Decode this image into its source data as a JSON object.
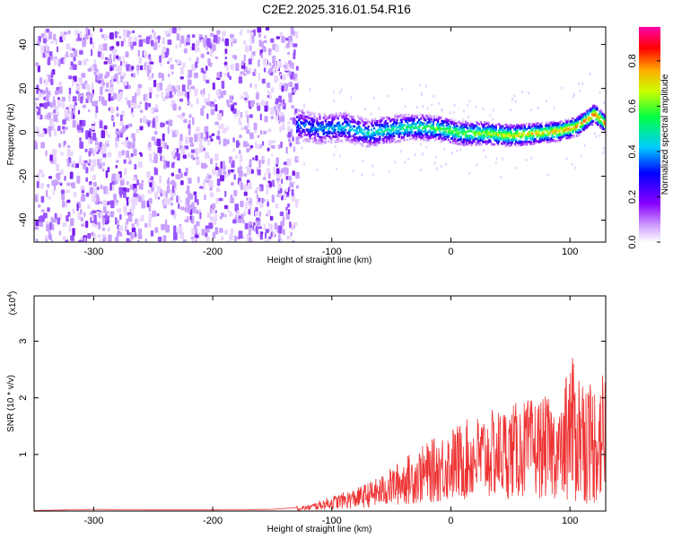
{
  "title": "C2E2.2025.316.01.54.R16",
  "chart_data": [
    {
      "type": "heatmap",
      "xlabel": "Height of straight line (km)",
      "ylabel": "Frequency (Hz)",
      "xlim": [
        -350,
        130
      ],
      "ylim": [
        -50,
        48
      ],
      "xticks": [
        -300,
        -200,
        -100,
        0,
        100
      ],
      "yticks": [
        -40,
        -20,
        0,
        20,
        40
      ],
      "noise_region_x": [
        -350,
        -130
      ],
      "tone_track": {
        "x": [
          -130,
          -110,
          -90,
          -70,
          -50,
          -30,
          -10,
          10,
          30,
          50,
          70,
          90,
          105,
          115,
          120,
          130
        ],
        "y": [
          4,
          2,
          3,
          0,
          2,
          3,
          2,
          0,
          0,
          -1,
          0,
          1,
          3,
          7,
          9,
          4
        ]
      },
      "colorbar": {
        "label": "Normalized spectral amplitude",
        "range": [
          0.0,
          0.95
        ],
        "ticks": [
          0.0,
          0.2,
          0.4,
          0.6,
          0.8
        ]
      }
    },
    {
      "type": "line",
      "xlabel": "Height of straight line (km)",
      "ylabel": "SNR (10 * v/v)",
      "scale_label": "(x10",
      "scale_exponent": "4",
      "scale_suffix": ")",
      "xlim": [
        -350,
        130
      ],
      "ylim": [
        0,
        3.8
      ],
      "xticks": [
        -300,
        -200,
        -100,
        0,
        100
      ],
      "yticks": [
        1,
        2,
        3
      ],
      "color": "#ee3333",
      "series": [
        {
          "x": [
            -350,
            -300,
            -250,
            -200,
            -150,
            -120,
            -100,
            -80,
            -60,
            -40,
            -20,
            0,
            20,
            40,
            60,
            80,
            90,
            100,
            110,
            120,
            130
          ],
          "y": [
            0.01,
            0.03,
            0.02,
            0.02,
            0.03,
            0.08,
            0.2,
            0.3,
            0.45,
            0.7,
            0.9,
            1.1,
            1.25,
            1.35,
            1.45,
            1.5,
            1.4,
            1.2,
            1.1,
            1.0,
            1.15
          ]
        }
      ]
    }
  ]
}
